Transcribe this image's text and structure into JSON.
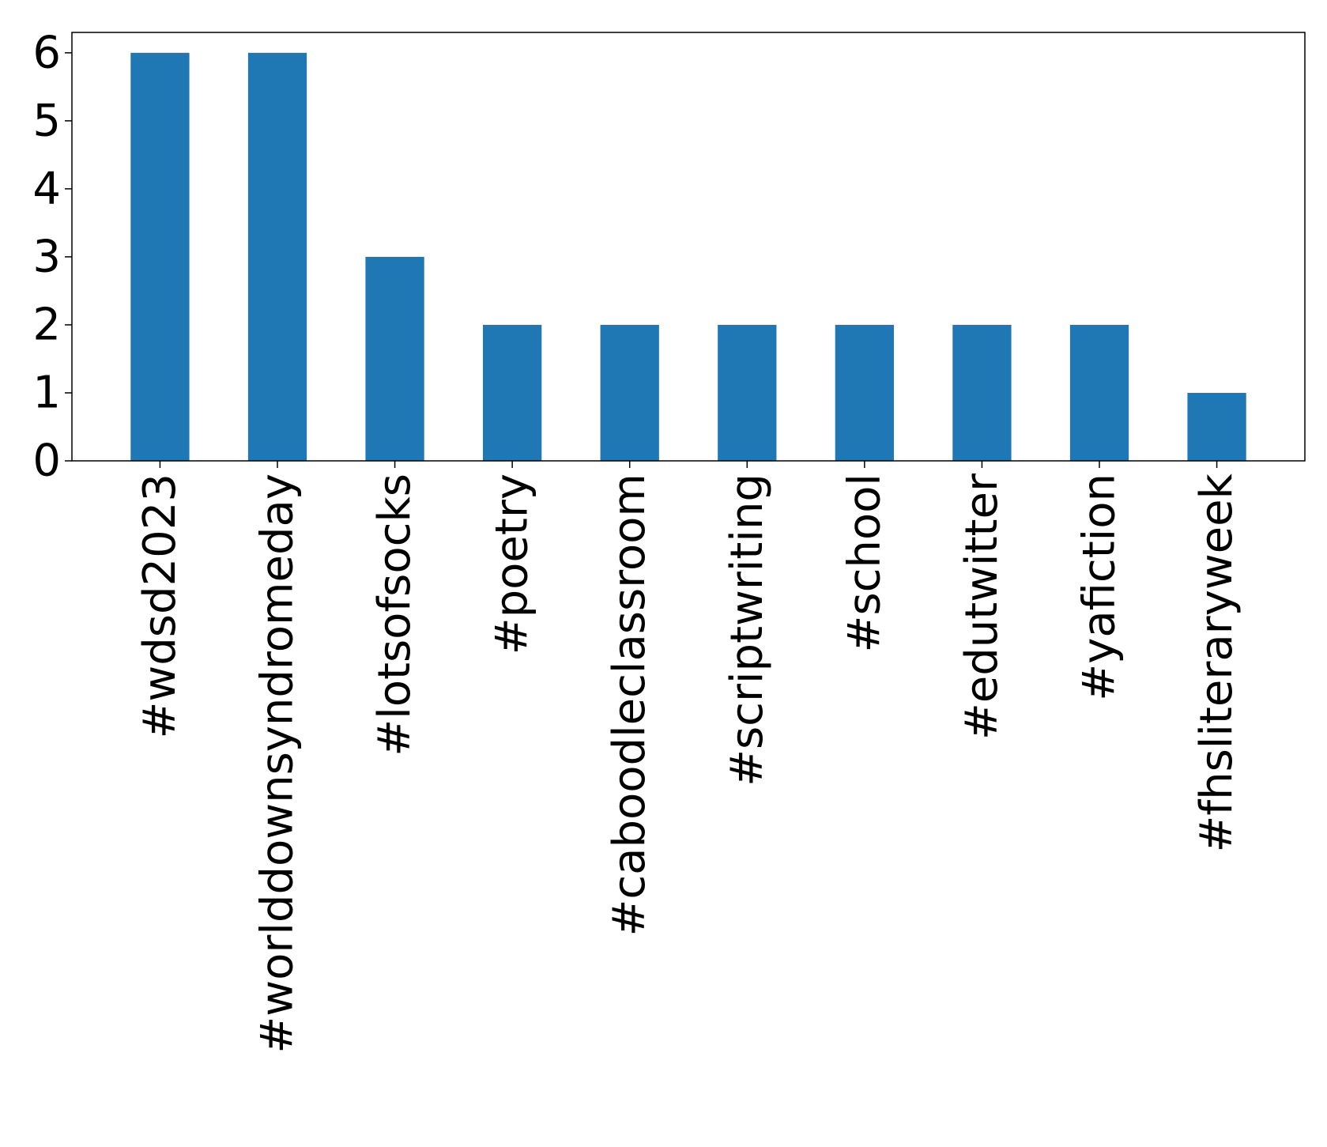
{
  "chart_data": {
    "type": "bar",
    "title": "",
    "xlabel": "",
    "ylabel": "",
    "categories": [
      "#wdsd2023",
      "#worlddownsyndromeday",
      "#lotsofsocks",
      "#poetry",
      "#caboodleclassroom",
      "#scriptwriting",
      "#school",
      "#edutwitter",
      "#yafiction",
      "#fhsliteraryweek"
    ],
    "values": [
      6,
      6,
      3,
      2,
      2,
      2,
      2,
      2,
      2,
      1
    ],
    "ylim": [
      0,
      6.3
    ],
    "yticks": [
      0,
      1,
      2,
      3,
      4,
      5,
      6
    ],
    "grid": false,
    "legend": "none",
    "bar_color": "#1f77b4"
  }
}
